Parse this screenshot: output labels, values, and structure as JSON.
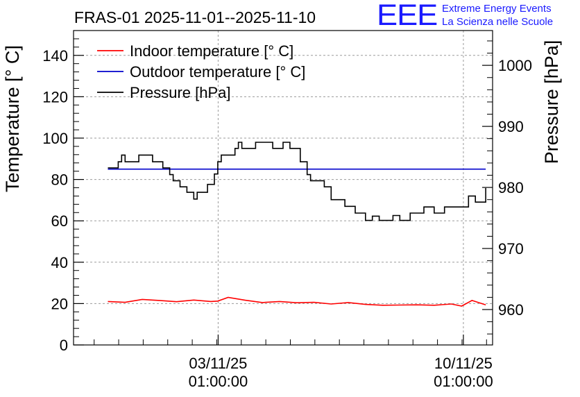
{
  "chart_data": {
    "type": "line",
    "title": "FRAS-01 2025-11-01--2025-11-10",
    "ylabel": "Temperature [° C]",
    "y2label": "Pressure [hPa]",
    "ylim": [
      0,
      152
    ],
    "y2lim": [
      954.2,
      1005.7
    ],
    "yticks": [
      0,
      20,
      40,
      60,
      80,
      100,
      120,
      140
    ],
    "y2ticks": [
      960,
      970,
      980,
      990,
      1000
    ],
    "xlim_days": [
      0,
      12.2
    ],
    "xticks": [
      {
        "day": 4.21,
        "label": "03/11/25",
        "sublabel": "01:00:00"
      },
      {
        "day": 11.35,
        "label": "10/11/25",
        "sublabel": "01:00:00"
      }
    ],
    "grid": true,
    "legend_position": "top-left",
    "series": [
      {
        "name": "Indoor temperature [° C]",
        "axis": "left",
        "color": "#ff0000",
        "x": [
          1.0,
          1.5,
          2.0,
          2.5,
          3.0,
          3.5,
          4.0,
          4.2,
          4.5,
          5.0,
          5.5,
          6.0,
          6.5,
          7.0,
          7.5,
          8.0,
          8.5,
          9.0,
          9.5,
          10.0,
          10.5,
          11.0,
          11.3,
          11.6,
          12.0
        ],
        "y": [
          21,
          20.6,
          22,
          21.5,
          20.9,
          21.7,
          21,
          21.2,
          23,
          21.6,
          20.5,
          21,
          20.4,
          20.6,
          19.8,
          20.5,
          19.6,
          19.2,
          19.3,
          19.4,
          19.2,
          19.8,
          18.8,
          21.5,
          19.4
        ]
      },
      {
        "name": "Outdoor temperature [° C]",
        "axis": "left",
        "color": "#0000cc",
        "x": [
          1.0,
          12.0
        ],
        "y": [
          85,
          85
        ]
      },
      {
        "name": "Pressure [hPa]",
        "axis": "right",
        "color": "#000000",
        "x": [
          1.0,
          1.2,
          1.3,
          1.4,
          1.5,
          1.6,
          1.9,
          2.0,
          2.3,
          2.5,
          2.6,
          2.8,
          2.9,
          3.1,
          3.3,
          3.5,
          3.6,
          3.7,
          3.9,
          4.1,
          4.2,
          4.3,
          4.5,
          4.7,
          4.8,
          4.9,
          5.2,
          5.3,
          5.6,
          5.8,
          6.1,
          6.3,
          6.6,
          6.8,
          6.9,
          7.1,
          7.3,
          7.5,
          7.8,
          7.9,
          8.2,
          8.5,
          8.7,
          8.9,
          9.3,
          9.5,
          9.8,
          10.1,
          10.2,
          10.5,
          10.8,
          11.0,
          11.2,
          11.5,
          11.7,
          11.8,
          12.0
        ],
        "y": [
          983.2,
          983.2,
          984.2,
          985.3,
          984.2,
          984.2,
          985.3,
          985.3,
          984.2,
          984.2,
          983.2,
          982.1,
          981.1,
          980.1,
          979.2,
          978.1,
          979.2,
          979.2,
          980.5,
          982.2,
          984.2,
          985.3,
          985.3,
          986.4,
          987.4,
          986.4,
          986.4,
          987.4,
          987.4,
          986.4,
          987.4,
          986.4,
          984.2,
          982.1,
          981.1,
          981.1,
          980.1,
          978.0,
          978.0,
          976.9,
          975.8,
          974.6,
          975.3,
          974.6,
          975.4,
          974.6,
          975.8,
          975.8,
          976.8,
          975.8,
          976.8,
          976.8,
          976.8,
          978.6,
          977.6,
          977.6,
          979.9
        ]
      }
    ]
  },
  "logo": {
    "mark": "EEE",
    "line1": "Extreme Energy Events",
    "line2": "La Scienza nelle Scuole"
  }
}
